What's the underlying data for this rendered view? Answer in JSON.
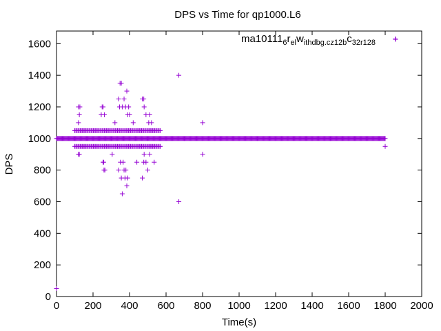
{
  "chart_data": {
    "type": "scatter",
    "title": "DPS vs Time for qp1000.L6",
    "xlabel": "Time(s)",
    "ylabel": "DPS",
    "xlim": [
      0,
      2000
    ],
    "ylim": [
      0,
      1680
    ],
    "xticks": [
      0,
      200,
      400,
      600,
      800,
      1000,
      1200,
      1400,
      1600,
      1800,
      2000
    ],
    "yticks": [
      0,
      200,
      400,
      600,
      800,
      1000,
      1200,
      1400,
      1600
    ],
    "grid": false,
    "legend_position": "top-right",
    "color": "#9400d3",
    "series": [
      {
        "name": "ma101116_rel_withdbg.cz12b_c32r128",
        "legend_label": {
          "text": "ma10111",
          "sub1": "6",
          "mid1": "r",
          "sub2": "el",
          "mid2": "w",
          "sub3": "ithdbg.cz12b",
          "mid3": "c",
          "sub4": "32r128"
        },
        "baseline": {
          "value": 1000,
          "from": 0,
          "to": 1800
        },
        "bands": [
          {
            "value": 1050,
            "from": 100,
            "to": 570
          },
          {
            "value": 950,
            "from": 100,
            "to": 570
          }
        ],
        "points": [
          [
            0,
            50
          ],
          [
            120,
            900
          ],
          [
            125,
            900
          ],
          [
            120,
            1100
          ],
          [
            125,
            1150
          ],
          [
            120,
            1200
          ],
          [
            128,
            1200
          ],
          [
            245,
            1150
          ],
          [
            250,
            1200
          ],
          [
            255,
            1200
          ],
          [
            262,
            1150
          ],
          [
            255,
            850
          ],
          [
            260,
            800
          ],
          [
            265,
            800
          ],
          [
            258,
            850
          ],
          [
            305,
            900
          ],
          [
            320,
            1100
          ],
          [
            340,
            1250
          ],
          [
            345,
            1200
          ],
          [
            348,
            1350
          ],
          [
            355,
            1350
          ],
          [
            360,
            1200
          ],
          [
            340,
            800
          ],
          [
            350,
            850
          ],
          [
            355,
            750
          ],
          [
            360,
            650
          ],
          [
            365,
            850
          ],
          [
            370,
            1250
          ],
          [
            378,
            1200
          ],
          [
            385,
            1300
          ],
          [
            390,
            1150
          ],
          [
            395,
            1200
          ],
          [
            400,
            1150
          ],
          [
            370,
            800
          ],
          [
            375,
            750
          ],
          [
            380,
            800
          ],
          [
            385,
            700
          ],
          [
            390,
            750
          ],
          [
            420,
            1100
          ],
          [
            440,
            850
          ],
          [
            470,
            1250
          ],
          [
            478,
            1250
          ],
          [
            480,
            1200
          ],
          [
            490,
            1150
          ],
          [
            470,
            750
          ],
          [
            478,
            850
          ],
          [
            480,
            900
          ],
          [
            490,
            850
          ],
          [
            500,
            800
          ],
          [
            505,
            1100
          ],
          [
            510,
            1150
          ],
          [
            520,
            1100
          ],
          [
            510,
            900
          ],
          [
            535,
            850
          ],
          [
            670,
            1400
          ],
          [
            670,
            600
          ],
          [
            800,
            1100
          ],
          [
            800,
            900
          ],
          [
            1800,
            950
          ],
          [
            1855,
            1630
          ]
        ]
      }
    ]
  }
}
